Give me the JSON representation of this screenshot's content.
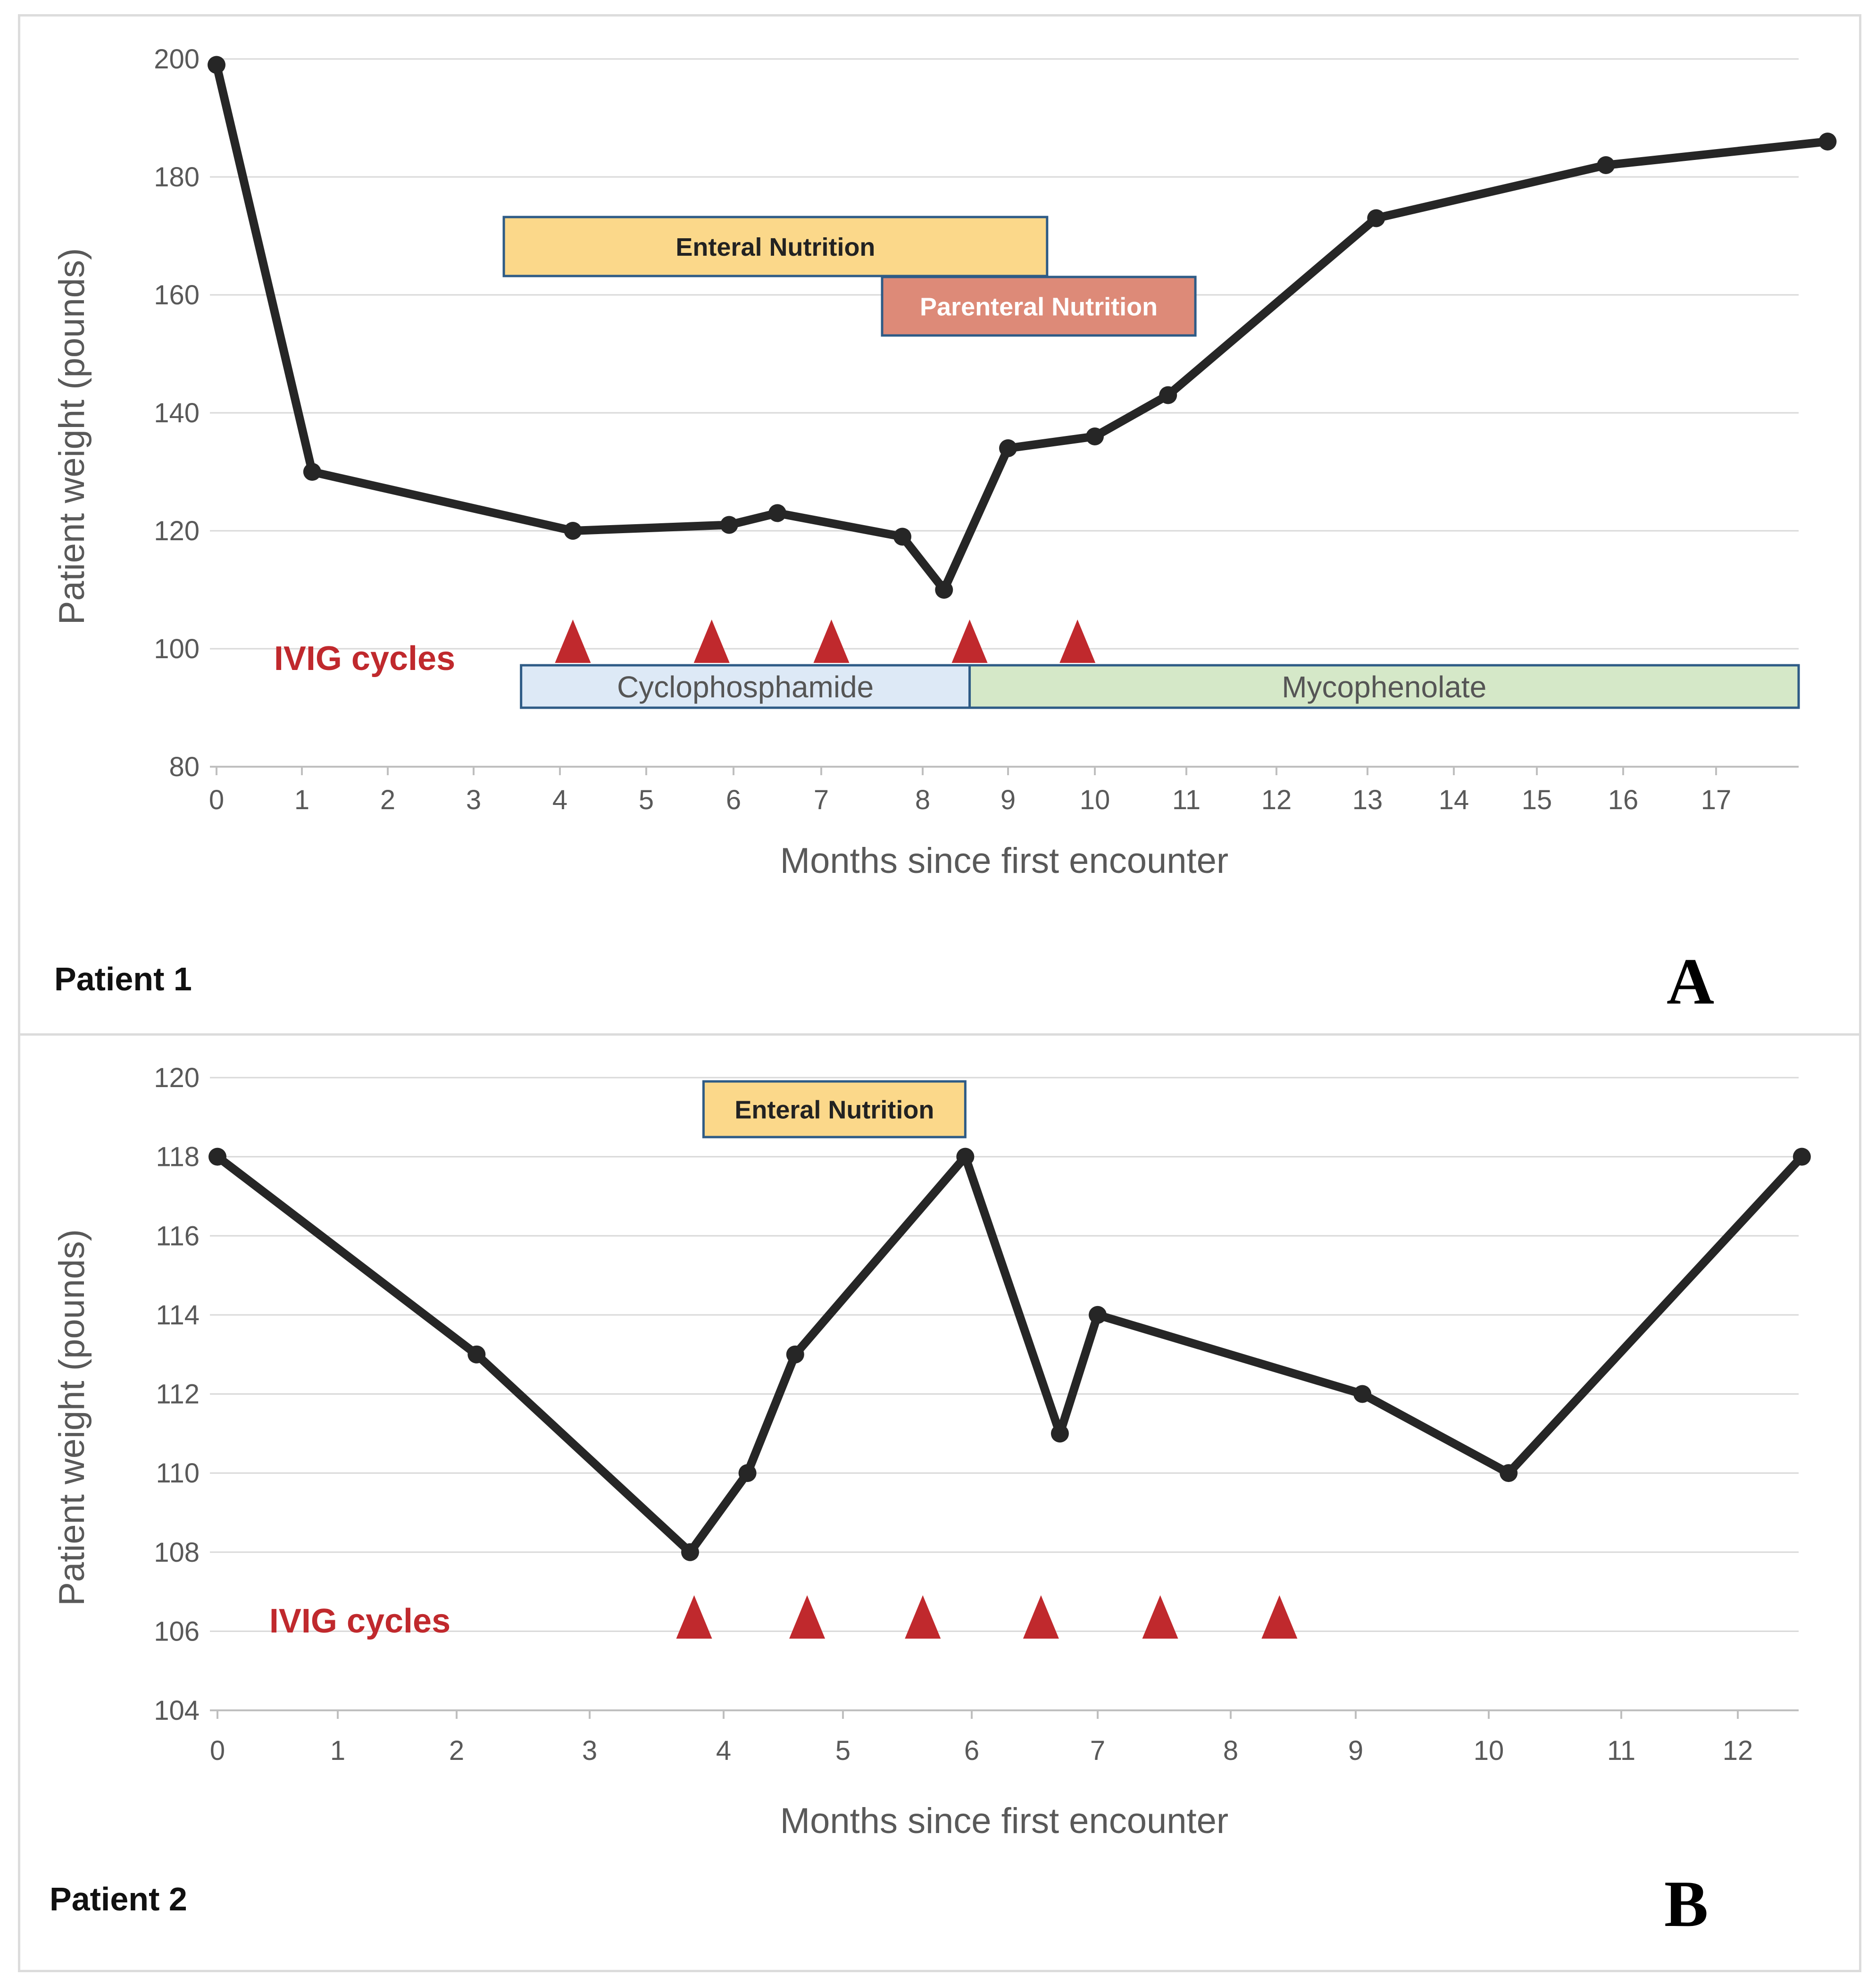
{
  "colors": {
    "line": "#262626",
    "grid": "#d9d9d9",
    "axis": "#bfbfbf",
    "tick_text": "#595959",
    "triangle": "#c0292d",
    "ivig_text": "#c0292d",
    "box_border": "#2e5b86",
    "enteral_fill": "#fbd88a",
    "parenteral_fill": "#dd8a78",
    "cyclophosphamide_fill": "#dde9f6",
    "mycophenolate_fill": "#d5e8c8"
  },
  "chart_data": [
    {
      "id": "A",
      "type": "line",
      "patient_label": "Patient 1",
      "panel_letter": "A",
      "xlabel": "Months since first encounter",
      "ylabel": "Patient weight (pounds)",
      "ylim": [
        80,
        200
      ],
      "yticks": [
        80,
        100,
        120,
        140,
        160,
        180,
        200
      ],
      "x_tick_labels": [
        "0",
        "1",
        "2",
        "3",
        "4",
        "5",
        "6",
        "7",
        "8",
        "9",
        "10",
        "11",
        "12",
        "13",
        "14",
        "15",
        "16",
        "17"
      ],
      "x_range": [
        0,
        18.2
      ],
      "series": [
        {
          "name": "Patient weight",
          "x": [
            0,
            1.12,
            4.15,
            5.95,
            6.5,
            7.8,
            8.25,
            9.0,
            10.0,
            10.8,
            13.1,
            15.8,
            18.2
          ],
          "y": [
            199,
            130,
            120,
            121,
            123,
            119,
            110,
            134,
            136,
            143,
            173,
            182,
            186
          ]
        }
      ],
      "ivig_label": "IVIG cycles",
      "ivig_cycles": [
        4.15,
        5.75,
        7.1,
        8.55,
        9.8
      ],
      "treatment_bars": [
        {
          "label": "Enteral Nutrition",
          "x0": 3.35,
          "x1": 9.45,
          "fill": "#fbd88a",
          "text_color": "#222222",
          "bold": true,
          "row": "upper1"
        },
        {
          "label": "Parenteral Nutrition",
          "x0": 7.6,
          "x1": 11.1,
          "fill": "#dd8a78",
          "text_color": "#ffffff",
          "bold": true,
          "row": "upper2"
        },
        {
          "label": "Cyclophosphamide",
          "x0": 3.55,
          "x1": 8.55,
          "fill": "#dde9f6",
          "text_color": "#555555",
          "bold": false,
          "row": "lower"
        },
        {
          "label": "Mycophenolate",
          "x0": 8.55,
          "x1": 18.2,
          "fill": "#d5e8c8",
          "text_color": "#555555",
          "bold": false,
          "row": "lower"
        }
      ]
    },
    {
      "id": "B",
      "type": "line",
      "patient_label": "Patient 2",
      "panel_letter": "B",
      "xlabel": "Months since first encounter",
      "ylabel": "Patient weight (pounds)",
      "ylim": [
        104,
        120
      ],
      "yticks": [
        104,
        106,
        108,
        110,
        112,
        114,
        116,
        118,
        120
      ],
      "x_tick_labels": [
        "0",
        "1",
        "2",
        "3",
        "4",
        "5",
        "6",
        "7",
        "8",
        "9",
        "10",
        "11",
        "12"
      ],
      "x_range": [
        0,
        12.55
      ],
      "series": [
        {
          "name": "Patient weight",
          "x": [
            0,
            2.15,
            3.75,
            4.2,
            4.6,
            5.95,
            6.7,
            7.0,
            9.05,
            10.15,
            12.55
          ],
          "y": [
            118,
            113,
            108,
            110,
            113,
            118,
            111,
            114,
            112,
            110,
            118
          ]
        }
      ],
      "ivig_label": "IVIG cycles",
      "ivig_cycles": [
        3.78,
        4.7,
        5.62,
        6.55,
        7.47,
        8.39
      ],
      "treatment_bars": [
        {
          "label": "Enteral Nutrition",
          "x0": 3.85,
          "x1": 5.95,
          "fill": "#fbd88a",
          "text_color": "#222222",
          "bold": true,
          "row": "upper1"
        }
      ]
    }
  ]
}
